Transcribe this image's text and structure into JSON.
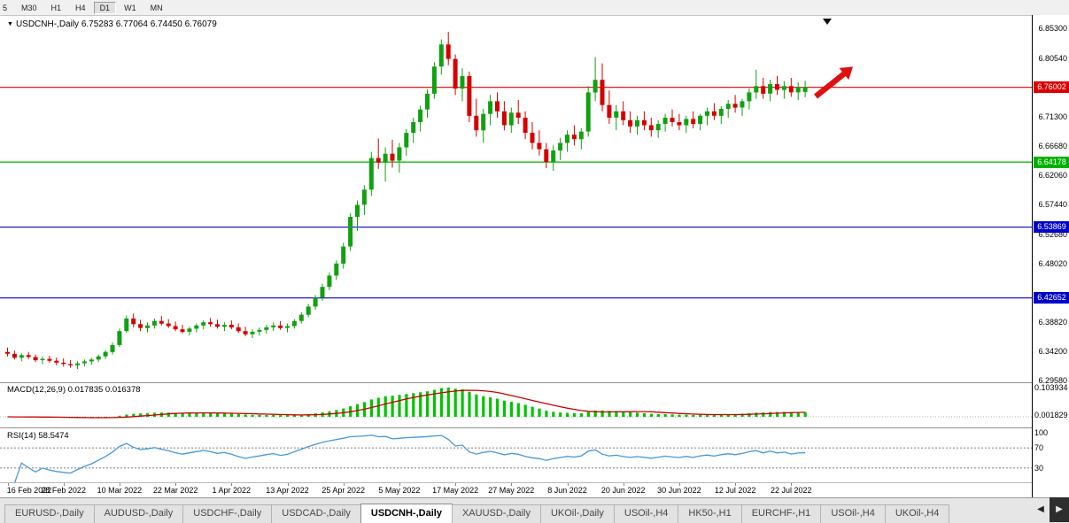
{
  "toolbar": {
    "timeframes": [
      "5",
      "M30",
      "H1",
      "H4",
      "D1",
      "W1",
      "MN"
    ],
    "active": "D1"
  },
  "chart": {
    "symbol_label": "USDCNH-,Daily",
    "ohlc_text": "6.75283 6.77064 6.74450 6.76079",
    "collapse_icon": "▼",
    "y_ticks": [
      "6.85300",
      "6.80540",
      "6.71300",
      "6.66680",
      "6.62060",
      "6.57440",
      "6.52680",
      "6.48020",
      "6.38820",
      "6.34200",
      "6.29580"
    ],
    "hlines": [
      {
        "price": "6.76002",
        "color": "#dd0000"
      },
      {
        "price": "6.64178",
        "color": "#00b200"
      },
      {
        "price": "6.53869",
        "color": "#0000cc"
      },
      {
        "price": "6.42652",
        "color": "#0000cc"
      }
    ]
  },
  "chart_data": {
    "type": "candlestick",
    "symbol": "USDCNH",
    "period": "Daily",
    "current_bar": {
      "open": 6.75283,
      "high": 6.77064,
      "low": 6.7445,
      "close": 6.76079
    },
    "price_axis_range": {
      "top": 6.8745,
      "bottom": 6.293
    },
    "colors": {
      "up": "#11a011",
      "down": "#d40000"
    },
    "x_ticks": [
      {
        "index": 0,
        "label": "16 Feb 2022"
      },
      {
        "index": 8,
        "label": "28 Feb 2022"
      },
      {
        "index": 16,
        "label": "10 Mar 2022"
      },
      {
        "index": 24,
        "label": "22 Mar 2022"
      },
      {
        "index": 32,
        "label": "1 Apr 2022"
      },
      {
        "index": 40,
        "label": "13 Apr 2022"
      },
      {
        "index": 48,
        "label": "25 Apr 2022"
      },
      {
        "index": 56,
        "label": "5 May 2022"
      },
      {
        "index": 64,
        "label": "17 May 2022"
      },
      {
        "index": 72,
        "label": "27 May 2022"
      },
      {
        "index": 80,
        "label": "8 Jun 2022"
      },
      {
        "index": 88,
        "label": "20 Jun 2022"
      },
      {
        "index": 96,
        "label": "30 Jun 2022"
      },
      {
        "index": 104,
        "label": "12 Jul 2022"
      },
      {
        "index": 112,
        "label": "22 Jul 2022"
      }
    ],
    "candles": [
      [
        6.341,
        6.348,
        6.334,
        6.338
      ],
      [
        6.338,
        6.343,
        6.329,
        6.332
      ],
      [
        6.332,
        6.339,
        6.326,
        6.336
      ],
      [
        6.336,
        6.341,
        6.33,
        6.333
      ],
      [
        6.333,
        6.337,
        6.325,
        6.328
      ],
      [
        6.328,
        6.334,
        6.322,
        6.33
      ],
      [
        6.33,
        6.335,
        6.324,
        6.327
      ],
      [
        6.327,
        6.332,
        6.32,
        6.324
      ],
      [
        6.324,
        6.331,
        6.318,
        6.322
      ],
      [
        6.322,
        6.328,
        6.316,
        6.32
      ],
      [
        6.32,
        6.326,
        6.314,
        6.323
      ],
      [
        6.323,
        6.329,
        6.318,
        6.326
      ],
      [
        6.326,
        6.332,
        6.321,
        6.329
      ],
      [
        6.329,
        6.337,
        6.325,
        6.334
      ],
      [
        6.334,
        6.344,
        6.33,
        6.341
      ],
      [
        6.341,
        6.356,
        6.337,
        6.352
      ],
      [
        6.352,
        6.378,
        6.349,
        6.374
      ],
      [
        6.374,
        6.399,
        6.371,
        6.394
      ],
      [
        6.394,
        6.402,
        6.38,
        6.385
      ],
      [
        6.385,
        6.392,
        6.374,
        6.379
      ],
      [
        6.379,
        6.388,
        6.372,
        6.383
      ],
      [
        6.383,
        6.394,
        6.378,
        6.39
      ],
      [
        6.39,
        6.398,
        6.383,
        6.386
      ],
      [
        6.386,
        6.393,
        6.379,
        6.382
      ],
      [
        6.382,
        6.389,
        6.374,
        6.377
      ],
      [
        6.377,
        6.384,
        6.37,
        6.373
      ],
      [
        6.373,
        6.381,
        6.367,
        6.378
      ],
      [
        6.378,
        6.386,
        6.372,
        6.383
      ],
      [
        6.383,
        6.391,
        6.377,
        6.388
      ],
      [
        6.388,
        6.395,
        6.381,
        6.385
      ],
      [
        6.385,
        6.392,
        6.378,
        6.381
      ],
      [
        6.381,
        6.388,
        6.374,
        6.384
      ],
      [
        6.384,
        6.391,
        6.377,
        6.38
      ],
      [
        6.38,
        6.386,
        6.371,
        6.374
      ],
      [
        6.374,
        6.381,
        6.366,
        6.369
      ],
      [
        6.369,
        6.377,
        6.363,
        6.373
      ],
      [
        6.373,
        6.38,
        6.367,
        6.376
      ],
      [
        6.376,
        6.384,
        6.37,
        6.38
      ],
      [
        6.38,
        6.388,
        6.374,
        6.383
      ],
      [
        6.383,
        6.39,
        6.376,
        6.379
      ],
      [
        6.379,
        6.386,
        6.372,
        6.382
      ],
      [
        6.382,
        6.393,
        6.378,
        6.39
      ],
      [
        6.39,
        6.404,
        6.386,
        6.4
      ],
      [
        6.4,
        6.417,
        6.396,
        6.413
      ],
      [
        6.413,
        6.431,
        6.408,
        6.427
      ],
      [
        6.427,
        6.449,
        6.422,
        6.444
      ],
      [
        6.444,
        6.467,
        6.439,
        6.462
      ],
      [
        6.462,
        6.486,
        6.455,
        6.481
      ],
      [
        6.481,
        6.514,
        6.473,
        6.508
      ],
      [
        6.508,
        6.561,
        6.501,
        6.555
      ],
      [
        6.555,
        6.581,
        6.533,
        6.574
      ],
      [
        6.574,
        6.605,
        6.558,
        6.598
      ],
      [
        6.598,
        6.658,
        6.588,
        6.648
      ],
      [
        6.648,
        6.679,
        6.631,
        6.641
      ],
      [
        6.641,
        6.665,
        6.611,
        6.655
      ],
      [
        6.655,
        6.677,
        6.633,
        6.644
      ],
      [
        6.644,
        6.672,
        6.625,
        6.665
      ],
      [
        6.665,
        6.694,
        6.652,
        6.688
      ],
      [
        6.688,
        6.712,
        6.672,
        6.705
      ],
      [
        6.705,
        6.731,
        6.69,
        6.725
      ],
      [
        6.725,
        6.757,
        6.712,
        6.75
      ],
      [
        6.75,
        6.8,
        6.742,
        6.793
      ],
      [
        6.793,
        6.836,
        6.78,
        6.828
      ],
      [
        6.828,
        6.848,
        6.795,
        6.805
      ],
      [
        6.805,
        6.812,
        6.748,
        6.758
      ],
      [
        6.758,
        6.79,
        6.738,
        6.778
      ],
      [
        6.778,
        6.785,
        6.705,
        6.715
      ],
      [
        6.715,
        6.742,
        6.682,
        6.692
      ],
      [
        6.692,
        6.726,
        6.672,
        6.718
      ],
      [
        6.718,
        6.748,
        6.7,
        6.738
      ],
      [
        6.738,
        6.752,
        6.712,
        6.722
      ],
      [
        6.722,
        6.738,
        6.692,
        6.7
      ],
      [
        6.7,
        6.728,
        6.688,
        6.72
      ],
      [
        6.72,
        6.74,
        6.702,
        6.712
      ],
      [
        6.712,
        6.722,
        6.678,
        6.688
      ],
      [
        6.688,
        6.705,
        6.662,
        6.672
      ],
      [
        6.672,
        6.692,
        6.652,
        6.662
      ],
      [
        6.662,
        6.672,
        6.632,
        6.642
      ],
      [
        6.642,
        6.668,
        6.628,
        6.66
      ],
      [
        6.66,
        6.68,
        6.645,
        6.672
      ],
      [
        6.672,
        6.692,
        6.658,
        6.685
      ],
      [
        6.685,
        6.7,
        6.668,
        6.678
      ],
      [
        6.678,
        6.695,
        6.662,
        6.69
      ],
      [
        6.69,
        6.762,
        6.682,
        6.752
      ],
      [
        6.752,
        6.808,
        6.738,
        6.772
      ],
      [
        6.772,
        6.798,
        6.722,
        6.732
      ],
      [
        6.732,
        6.755,
        6.702,
        6.712
      ],
      [
        6.712,
        6.732,
        6.692,
        6.722
      ],
      [
        6.722,
        6.738,
        6.7,
        6.708
      ],
      [
        6.708,
        6.722,
        6.688,
        6.698
      ],
      [
        6.698,
        6.715,
        6.685,
        6.708
      ],
      [
        6.708,
        6.722,
        6.692,
        6.7
      ],
      [
        6.7,
        6.712,
        6.682,
        6.692
      ],
      [
        6.692,
        6.708,
        6.68,
        6.702
      ],
      [
        6.702,
        6.718,
        6.69,
        6.712
      ],
      [
        6.712,
        6.725,
        6.698,
        6.705
      ],
      [
        6.705,
        6.718,
        6.692,
        6.7
      ],
      [
        6.7,
        6.715,
        6.688,
        6.71
      ],
      [
        6.71,
        6.722,
        6.695,
        6.702
      ],
      [
        6.702,
        6.718,
        6.692,
        6.715
      ],
      [
        6.715,
        6.728,
        6.7,
        6.722
      ],
      [
        6.722,
        6.735,
        6.708,
        6.715
      ],
      [
        6.715,
        6.73,
        6.702,
        6.726
      ],
      [
        6.726,
        6.74,
        6.712,
        6.734
      ],
      [
        6.734,
        6.748,
        6.72,
        6.728
      ],
      [
        6.728,
        6.742,
        6.715,
        6.738
      ],
      [
        6.738,
        6.758,
        6.725,
        6.752
      ],
      [
        6.752,
        6.788,
        6.742,
        6.762
      ],
      [
        6.762,
        6.775,
        6.742,
        6.75
      ],
      [
        6.75,
        6.772,
        6.738,
        6.765
      ],
      [
        6.765,
        6.778,
        6.748,
        6.756
      ],
      [
        6.756,
        6.77,
        6.742,
        6.762
      ],
      [
        6.762,
        6.775,
        6.745,
        6.752
      ],
      [
        6.752,
        6.768,
        6.74,
        6.76
      ],
      [
        6.75283,
        6.77064,
        6.7445,
        6.76079
      ]
    ],
    "indicators": [
      {
        "name": "MACD",
        "params": "12,26,9",
        "values": [
          0.017835,
          0.016378
        ]
      },
      {
        "name": "RSI",
        "params": "14",
        "value": 58.5474
      }
    ]
  },
  "macd": {
    "label": "MACD(12,26,9)",
    "value_text": "0.017835 0.016378",
    "axis_labels": [
      "0.103934",
      "0.001829"
    ],
    "bar_color": "#00c400",
    "signal_color": "#cc0000"
  },
  "rsi": {
    "label": "RSI(14)",
    "value_text": "58.5474",
    "axis_labels": [
      "100",
      "70",
      "30"
    ],
    "levels": [
      70,
      30
    ],
    "line_color": "#4698d8"
  },
  "annotations": {
    "trend_arrow": {
      "direction": "up-right",
      "color": "#e01010"
    },
    "top_marker": {
      "shape": "down-triangle",
      "color": "#111111"
    }
  },
  "tabs": {
    "items": [
      "EURUSD-,Daily",
      "AUDUSD-,Daily",
      "USDCHF-,Daily",
      "USDCAD-,Daily",
      "USDCNH-,Daily",
      "XAUUSD-,Daily",
      "UKOil-,Daily",
      "USOil-,H4",
      "HK50-,H1",
      "EURCHF-,H1",
      "USOil-,H4",
      "UKOil-,H4"
    ],
    "active_index": 4,
    "scroll_left_icon": "◀",
    "scroll_right_icon": "▶"
  }
}
